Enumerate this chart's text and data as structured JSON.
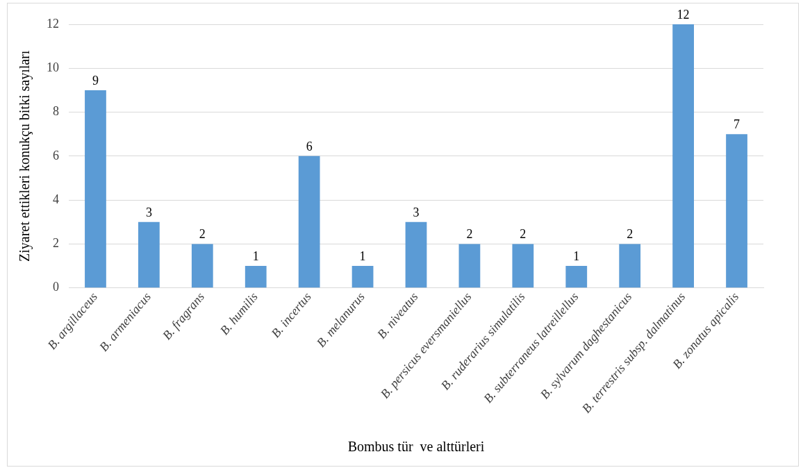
{
  "chart_data": {
    "type": "bar",
    "xlabel": "Bombus tür  ve alttürleri",
    "ylabel": "Ziyaret ettikleri konukçu bitki sayıları",
    "categories": [
      "B. argillaceus",
      "B. armeniacus",
      "B. fragrans",
      "B. humilis",
      "B. incertus",
      "B. melanurus",
      "B. niveatus",
      "B. persicus eversmaniellus",
      "B. ruderarius simulatilis",
      "B. subterraneus latreillellus",
      "B. sylvarum daghestanicus",
      "B. terrestris subsp. dalmatinus",
      "B. zonatus apicalis"
    ],
    "values": [
      9,
      3,
      2,
      1,
      6,
      1,
      3,
      2,
      2,
      1,
      2,
      12,
      7
    ],
    "color": "#5b9bd5",
    "ylim": [
      0,
      12
    ],
    "yticks": [
      0,
      2,
      4,
      6,
      8,
      10,
      12
    ],
    "grid": "y",
    "legend": false,
    "data_labels": true
  }
}
